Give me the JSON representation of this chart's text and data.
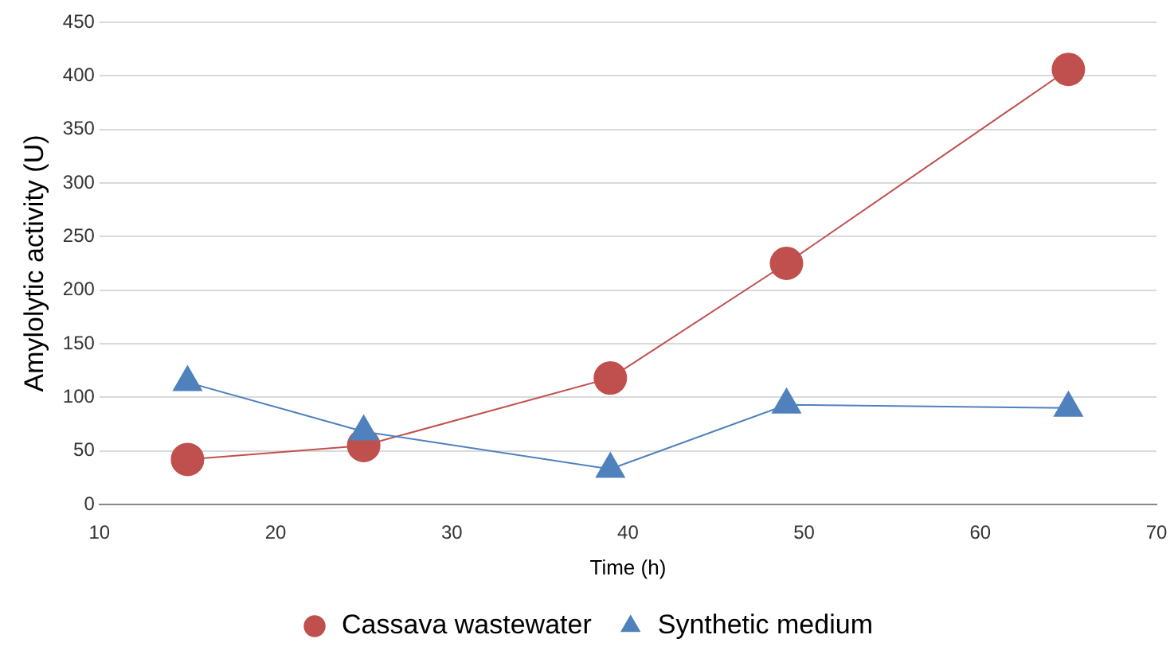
{
  "chart_data": {
    "type": "line",
    "xlabel": "Time (h)",
    "ylabel": "Amylolytic activity (U)",
    "xlim": [
      10,
      70
    ],
    "xticks": [
      10,
      20,
      30,
      40,
      50,
      60,
      70
    ],
    "ylim": [
      0,
      450
    ],
    "yticks": [
      0,
      50,
      100,
      150,
      200,
      250,
      300,
      350,
      400,
      450
    ],
    "grid": "y",
    "legend": "bottom",
    "series": [
      {
        "name": "Cassava wastewater",
        "color": "#c0504d",
        "marker": "circle",
        "x": [
          15,
          25,
          39,
          49,
          65
        ],
        "values": [
          42,
          55,
          118,
          225,
          406
        ]
      },
      {
        "name": "Synthetic medium",
        "color": "#4f81bd",
        "marker": "triangle",
        "x": [
          15,
          25,
          39,
          49,
          65
        ],
        "values": [
          114,
          68,
          33,
          93,
          90
        ]
      }
    ]
  }
}
